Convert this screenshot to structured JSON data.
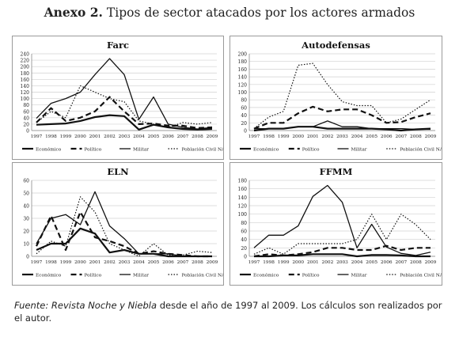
{
  "header": {
    "label": "Anexo 2.",
    "text": "Tipos de sector atacados por los actores armados"
  },
  "source": {
    "label": "Fuente:",
    "publication": "Revista Noche y Niebla",
    "text": "desde el año de 1997 al 2009. Los cálculos son realizados por el autor."
  },
  "chart_data": [
    {
      "type": "line",
      "title": "Farc",
      "x": [
        "1997",
        "1998",
        "1999",
        "2000",
        "2001",
        "2002",
        "2003",
        "2004",
        "2005",
        "2006",
        "2007",
        "2008",
        "2009"
      ],
      "ylim": [
        0,
        240
      ],
      "yticks": [
        0,
        20,
        40,
        60,
        80,
        100,
        120,
        140,
        160,
        180,
        200,
        220,
        240
      ],
      "legend_position": "bottom",
      "series": [
        {
          "name": "Económico",
          "style": "solid-thick",
          "values": [
            18,
            20,
            22,
            30,
            42,
            48,
            45,
            3,
            18,
            10,
            5,
            3,
            5
          ]
        },
        {
          "name": "Político",
          "style": "dashed",
          "values": [
            25,
            70,
            30,
            40,
            60,
            105,
            60,
            20,
            22,
            15,
            15,
            8,
            10
          ]
        },
        {
          "name": "Militar",
          "style": "solid",
          "values": [
            38,
            85,
            100,
            120,
            175,
            225,
            175,
            35,
            105,
            20,
            10,
            5,
            10
          ]
        },
        {
          "name": "Población Civil NA",
          "style": "dotted",
          "values": [
            25,
            60,
            40,
            140,
            120,
            100,
            90,
            30,
            20,
            10,
            25,
            20,
            25
          ]
        }
      ]
    },
    {
      "type": "line",
      "title": "Autodefensas",
      "x": [
        "1997",
        "1998",
        "1999",
        "2000",
        "2001",
        "2002",
        "2003",
        "2004",
        "2005",
        "2006",
        "2007",
        "2008",
        "2009"
      ],
      "ylim": [
        0,
        200
      ],
      "yticks": [
        0,
        20,
        40,
        60,
        80,
        100,
        120,
        140,
        160,
        180,
        200
      ],
      "legend_position": "bottom",
      "series": [
        {
          "name": "Económico",
          "style": "solid-thick",
          "values": [
            0,
            5,
            5,
            10,
            10,
            5,
            5,
            5,
            5,
            3,
            0,
            3,
            5
          ]
        },
        {
          "name": "Político",
          "style": "dashed",
          "values": [
            5,
            20,
            20,
            45,
            62,
            50,
            55,
            55,
            40,
            20,
            22,
            35,
            45
          ]
        },
        {
          "name": "Militar",
          "style": "solid",
          "values": [
            5,
            5,
            5,
            10,
            10,
            25,
            10,
            10,
            5,
            5,
            5,
            3,
            3
          ]
        },
        {
          "name": "Población Civil NA",
          "style": "dotted",
          "values": [
            5,
            35,
            50,
            170,
            175,
            120,
            75,
            65,
            65,
            20,
            30,
            55,
            80
          ]
        }
      ]
    },
    {
      "type": "line",
      "title": "ELN",
      "x": [
        "1997",
        "1998",
        "1999",
        "2000",
        "2001",
        "2002",
        "2003",
        "2004",
        "2005",
        "2006",
        "2007",
        "2008",
        "2009"
      ],
      "ylim": [
        0,
        60
      ],
      "yticks": [
        0,
        10,
        20,
        30,
        40,
        50,
        60
      ],
      "legend_position": "bottom",
      "series": [
        {
          "name": "Económico",
          "style": "solid-thick",
          "values": [
            5,
            10,
            10,
            22,
            18,
            3,
            5,
            2,
            2,
            0,
            0,
            0,
            0
          ]
        },
        {
          "name": "Político",
          "style": "dashed",
          "values": [
            8,
            32,
            5,
            35,
            15,
            12,
            8,
            2,
            4,
            2,
            1,
            0,
            0
          ]
        },
        {
          "name": "Militar",
          "style": "solid",
          "values": [
            10,
            30,
            33,
            25,
            51,
            24,
            14,
            2,
            2,
            2,
            0,
            0,
            0
          ]
        },
        {
          "name": "Población Civil NA",
          "style": "dotted",
          "values": [
            2,
            12,
            8,
            47,
            35,
            10,
            5,
            0,
            10,
            1,
            1,
            4,
            3
          ]
        }
      ]
    },
    {
      "type": "line",
      "title": "FFMM",
      "x": [
        "1997",
        "1998",
        "1999",
        "2000",
        "2001",
        "2002",
        "2003",
        "2004",
        "2005",
        "2006",
        "2007",
        "2008",
        "2009"
      ],
      "ylim": [
        0,
        180
      ],
      "yticks": [
        0,
        20,
        40,
        60,
        80,
        100,
        120,
        140,
        160,
        180
      ],
      "legend_position": "bottom",
      "series": [
        {
          "name": "Económico",
          "style": "solid-thick",
          "values": [
            0,
            0,
            2,
            2,
            5,
            5,
            5,
            0,
            3,
            3,
            2,
            0,
            0
          ]
        },
        {
          "name": "Político",
          "style": "dashed",
          "values": [
            0,
            5,
            2,
            5,
            10,
            20,
            20,
            15,
            15,
            25,
            15,
            20,
            20
          ]
        },
        {
          "name": "Militar",
          "style": "solid",
          "values": [
            20,
            50,
            50,
            72,
            142,
            168,
            128,
            20,
            76,
            22,
            7,
            2,
            10
          ]
        },
        {
          "name": "Población Civil NA",
          "style": "dotted",
          "values": [
            5,
            20,
            5,
            30,
            30,
            30,
            30,
            40,
            100,
            40,
            100,
            75,
            40
          ]
        }
      ]
    }
  ]
}
